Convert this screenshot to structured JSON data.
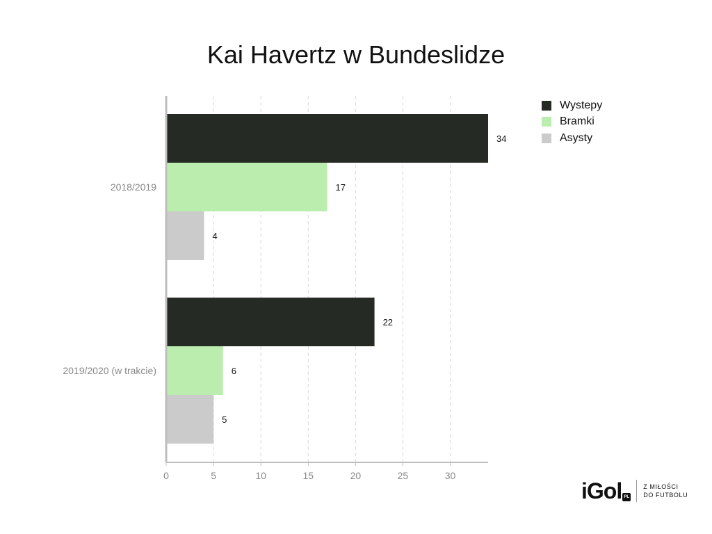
{
  "chart_data": {
    "type": "bar",
    "orientation": "horizontal",
    "title": "Kai Havertz w Bundeslidze",
    "categories": [
      "2018/2019",
      "2019/2020 (w trakcie)"
    ],
    "series": [
      {
        "name": "Wystepy",
        "values": [
          34,
          22
        ],
        "color": "#262a24"
      },
      {
        "name": "Bramki",
        "values": [
          17,
          6
        ],
        "color": "#bbedaf"
      },
      {
        "name": "Asysty",
        "values": [
          4,
          5
        ],
        "color": "#cbcbcb"
      }
    ],
    "xlim": [
      0,
      34
    ],
    "xticks": [
      0,
      5,
      10,
      15,
      20,
      25,
      30
    ],
    "grid": true,
    "legend_position": "top-right"
  },
  "logo": {
    "text": "iGol",
    "badge": "PL",
    "tagline_line1": "Z MIŁOŚCI",
    "tagline_line2": "DO FUTBOLU"
  }
}
